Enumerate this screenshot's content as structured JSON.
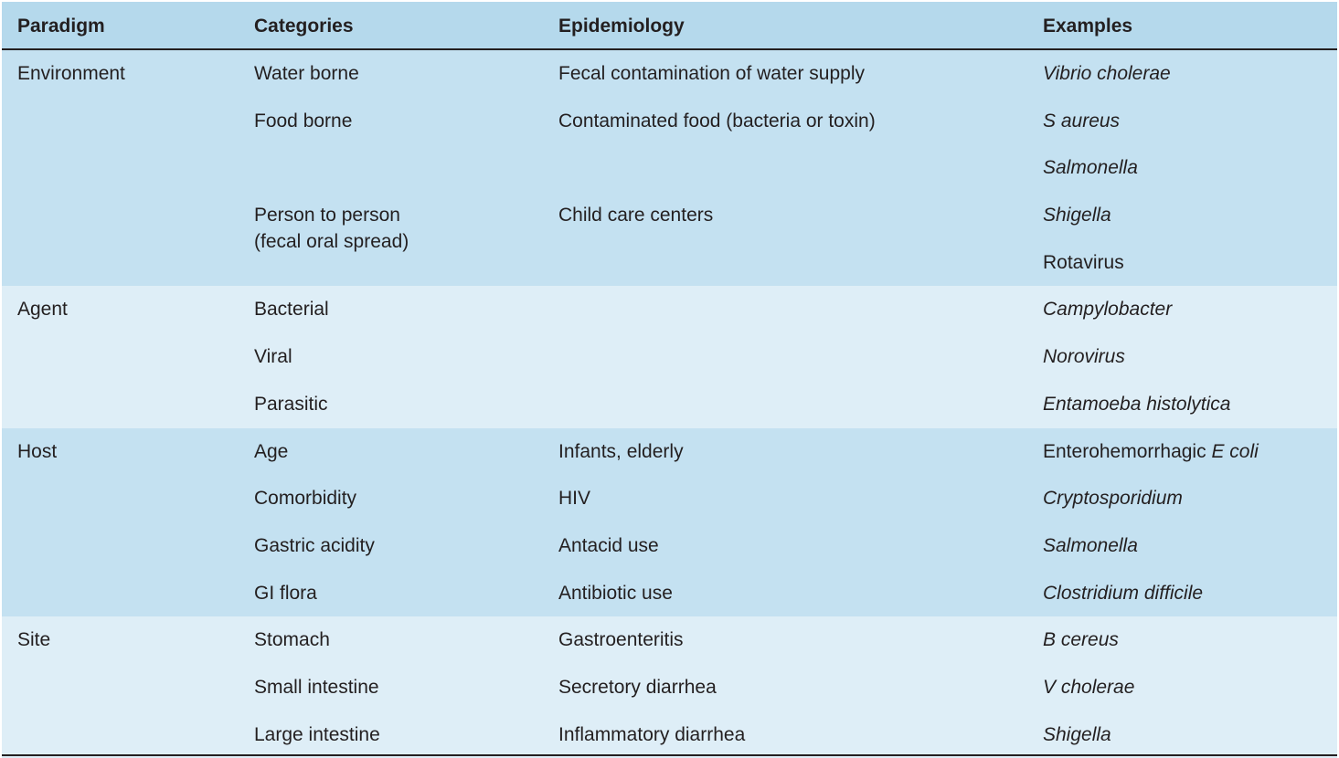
{
  "header": {
    "paradigm": "Paradigm",
    "categories": "Categories",
    "epidemiology": "Epidemiology",
    "examples": "Examples"
  },
  "groups": [
    {
      "paradigm": "Environment",
      "rows": [
        {
          "category": "Water borne",
          "epidemiology": "Fecal contamination of water supply",
          "example": "Vibrio cholerae",
          "example_italic": true
        },
        {
          "category": "Food borne",
          "epidemiology": "Contaminated food (bacteria or toxin)",
          "example": "S aureus",
          "example_italic": true
        },
        {
          "category": "",
          "epidemiology": "",
          "example": "Salmonella",
          "example_italic": true
        },
        {
          "category": "Person to person",
          "category_line2": "(fecal oral spread)",
          "epidemiology": "Child care centers",
          "example": "Shigella",
          "example_italic": true
        },
        {
          "category": "",
          "epidemiology": "",
          "example": "Rotavirus",
          "example_italic": false
        }
      ]
    },
    {
      "paradigm": "Agent",
      "rows": [
        {
          "category": "Bacterial",
          "epidemiology": "",
          "example": "Campylobacter",
          "example_italic": true
        },
        {
          "category": "Viral",
          "epidemiology": "",
          "example": "Norovirus",
          "example_italic": true
        },
        {
          "category": "Parasitic",
          "epidemiology": "",
          "example": "Entamoeba histolytica",
          "example_italic": true
        }
      ]
    },
    {
      "paradigm": "Host",
      "rows": [
        {
          "category": "Age",
          "epidemiology": "Infants, elderly",
          "example_prefix": "Enterohemorrhagic ",
          "example": "E coli",
          "example_italic": true
        },
        {
          "category": "Comorbidity",
          "epidemiology": "HIV",
          "example": "Cryptosporidium",
          "example_italic": true
        },
        {
          "category": "Gastric acidity",
          "epidemiology": "Antacid use",
          "example": "Salmonella",
          "example_italic": true
        },
        {
          "category": "GI flora",
          "epidemiology": "Antibiotic use",
          "example": "Clostridium difficile",
          "example_italic": true
        }
      ]
    },
    {
      "paradigm": "Site",
      "rows": [
        {
          "category": "Stomach",
          "epidemiology": "Gastroenteritis",
          "example": "B cereus",
          "example_italic": true
        },
        {
          "category": "Small intestine",
          "epidemiology": "Secretory diarrhea",
          "example": "V cholerae",
          "example_italic": true
        },
        {
          "category": "Large intestine",
          "epidemiology": "Inflammatory diarrhea",
          "example": "Shigella",
          "example_italic": true
        }
      ]
    }
  ],
  "colors": {
    "header_bg": "#b5d9ec",
    "dark_band": "#c4e1f1",
    "light_band": "#deeef7",
    "text": "#231f20"
  }
}
